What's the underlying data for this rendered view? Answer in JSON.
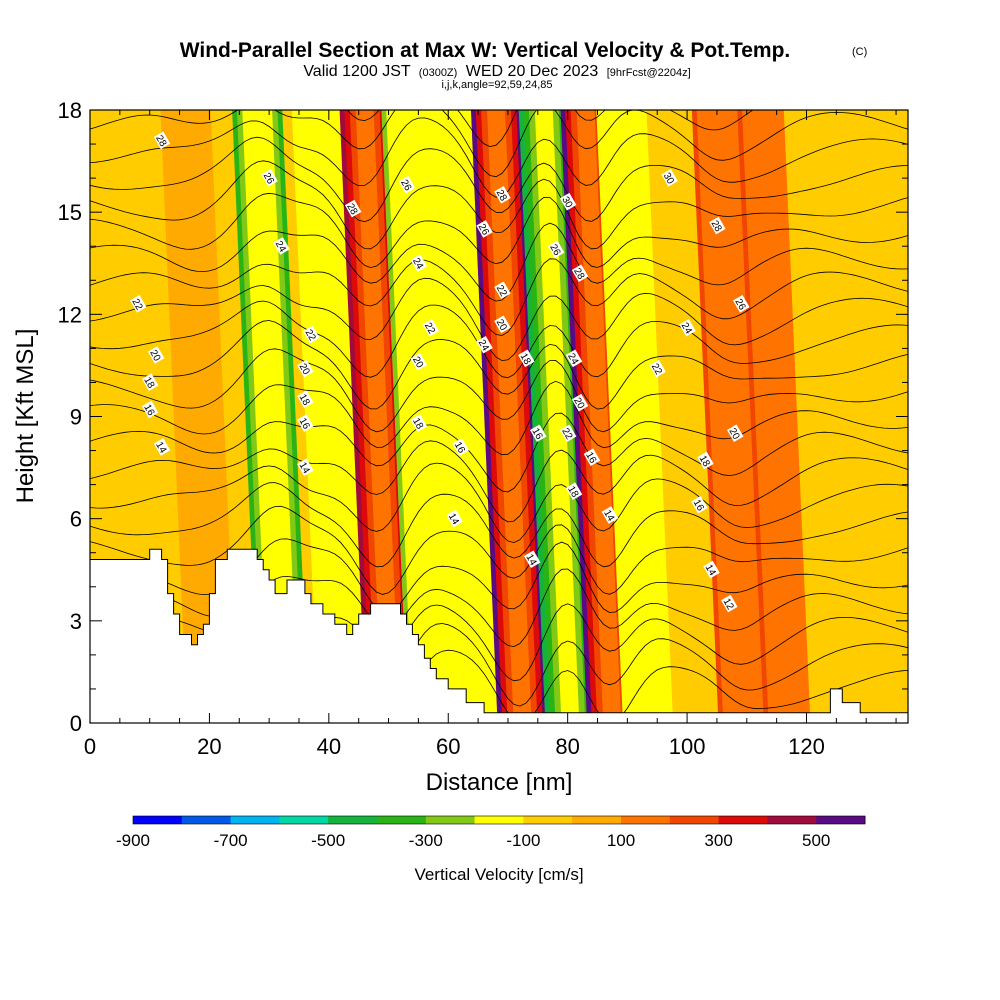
{
  "chart_data": {
    "type": "heatmap",
    "title": "Wind-Parallel Section at Max W: Vertical Velocity & Pot.Temp.",
    "title_mark": "(C)",
    "subtitle_parts": [
      "Valid 1200 JST",
      "(0300Z)",
      "WED 20 Dec 2023",
      "[9hrFcst@2204z]"
    ],
    "subtitle2": "i,j,k,angle=92,59,24,85",
    "xlabel": "Distance [nm]",
    "ylabel": "Height [Kft MSL]",
    "xlim": [
      0,
      137
    ],
    "ylim": [
      0,
      18
    ],
    "xticks": [
      "0",
      "20",
      "40",
      "60",
      "80",
      "100",
      "120"
    ],
    "yticks": [
      "0",
      "3",
      "6",
      "9",
      "12",
      "15",
      "18"
    ],
    "colorbar": {
      "label": "Vertical Velocity [cm/s]",
      "tick_labels": [
        "-900",
        "-700",
        "-500",
        "-300",
        "-100",
        "100",
        "300",
        "500"
      ],
      "colors": [
        "#0000ff",
        "#005ae6",
        "#00b4f0",
        "#00d7a5",
        "#14b43c",
        "#28b414",
        "#82c814",
        "#ffff00",
        "#ffcc00",
        "#ffaa00",
        "#ff7300",
        "#f04600",
        "#dc0a0a",
        "#a00a3c",
        "#5a0a82"
      ],
      "vmin": -900,
      "vmax": 600,
      "step": 100
    },
    "velocity_bands": [
      {
        "x": 16,
        "v": 80
      },
      {
        "x": 28,
        "v": -350
      },
      {
        "x": 38,
        "v": -150
      },
      {
        "x": 46,
        "v": 450
      },
      {
        "x": 53,
        "v": -250
      },
      {
        "x": 60,
        "v": -120
      },
      {
        "x": 68,
        "v": 520
      },
      {
        "x": 76,
        "v": -420
      },
      {
        "x": 83,
        "v": 500
      },
      {
        "x": 89,
        "v": -130
      },
      {
        "x": 112,
        "v": 100
      },
      {
        "x": 105,
        "v": 250
      }
    ],
    "theta_contour_labels": [
      {
        "x": 12,
        "y": 17.1,
        "text": "28"
      },
      {
        "x": 30,
        "y": 16.0,
        "text": "26"
      },
      {
        "x": 32,
        "y": 14.0,
        "text": "24"
      },
      {
        "x": 8,
        "y": 12.3,
        "text": "22"
      },
      {
        "x": 11,
        "y": 10.8,
        "text": "20"
      },
      {
        "x": 10,
        "y": 10.0,
        "text": "18"
      },
      {
        "x": 10,
        "y": 9.2,
        "text": "16"
      },
      {
        "x": 12,
        "y": 8.1,
        "text": "14"
      },
      {
        "x": 44,
        "y": 15.1,
        "text": "28"
      },
      {
        "x": 53,
        "y": 15.8,
        "text": "26"
      },
      {
        "x": 55,
        "y": 13.5,
        "text": "24"
      },
      {
        "x": 57,
        "y": 11.6,
        "text": "22"
      },
      {
        "x": 55,
        "y": 10.6,
        "text": "20"
      },
      {
        "x": 55,
        "y": 8.8,
        "text": "18"
      },
      {
        "x": 62,
        "y": 8.1,
        "text": "16"
      },
      {
        "x": 61,
        "y": 6.0,
        "text": "14"
      },
      {
        "x": 37,
        "y": 11.4,
        "text": "22"
      },
      {
        "x": 36,
        "y": 10.4,
        "text": "20"
      },
      {
        "x": 36,
        "y": 9.5,
        "text": "18"
      },
      {
        "x": 36,
        "y": 8.8,
        "text": "16"
      },
      {
        "x": 36,
        "y": 7.5,
        "text": "14"
      },
      {
        "x": 69,
        "y": 15.5,
        "text": "28"
      },
      {
        "x": 66,
        "y": 14.5,
        "text": "26"
      },
      {
        "x": 69,
        "y": 12.7,
        "text": "22"
      },
      {
        "x": 69,
        "y": 11.7,
        "text": "20"
      },
      {
        "x": 66,
        "y": 11.1,
        "text": "24"
      },
      {
        "x": 73,
        "y": 10.7,
        "text": "18"
      },
      {
        "x": 75,
        "y": 8.5,
        "text": "16"
      },
      {
        "x": 74,
        "y": 4.8,
        "text": "14"
      },
      {
        "x": 80,
        "y": 15.3,
        "text": "30"
      },
      {
        "x": 78,
        "y": 13.9,
        "text": "26"
      },
      {
        "x": 82,
        "y": 13.2,
        "text": "28"
      },
      {
        "x": 81,
        "y": 10.7,
        "text": "24"
      },
      {
        "x": 82,
        "y": 9.4,
        "text": "20"
      },
      {
        "x": 80,
        "y": 8.5,
        "text": "22"
      },
      {
        "x": 84,
        "y": 7.8,
        "text": "16"
      },
      {
        "x": 81,
        "y": 6.8,
        "text": "18"
      },
      {
        "x": 87,
        "y": 6.1,
        "text": "14"
      },
      {
        "x": 97,
        "y": 16.0,
        "text": "30"
      },
      {
        "x": 105,
        "y": 14.6,
        "text": "28"
      },
      {
        "x": 109,
        "y": 12.3,
        "text": "26"
      },
      {
        "x": 100,
        "y": 11.6,
        "text": "24"
      },
      {
        "x": 95,
        "y": 10.4,
        "text": "22"
      },
      {
        "x": 108,
        "y": 8.5,
        "text": "20"
      },
      {
        "x": 103,
        "y": 7.7,
        "text": "18"
      },
      {
        "x": 102,
        "y": 6.4,
        "text": "16"
      },
      {
        "x": 104,
        "y": 4.5,
        "text": "14"
      },
      {
        "x": 107,
        "y": 3.5,
        "text": "12"
      }
    ],
    "terrain_heights": [
      [
        0,
        4.8
      ],
      [
        10,
        4.8
      ],
      [
        10,
        5.1
      ],
      [
        12,
        5.1
      ],
      [
        12,
        4.8
      ],
      [
        13,
        4.8
      ],
      [
        13,
        3.8
      ],
      [
        14,
        3.8
      ],
      [
        14,
        3.2
      ],
      [
        15,
        3.2
      ],
      [
        15,
        2.6
      ],
      [
        17,
        2.6
      ],
      [
        17,
        2.3
      ],
      [
        18,
        2.3
      ],
      [
        18,
        2.6
      ],
      [
        19,
        2.6
      ],
      [
        19,
        2.9
      ],
      [
        20,
        2.9
      ],
      [
        20,
        3.8
      ],
      [
        21,
        3.8
      ],
      [
        21,
        4.8
      ],
      [
        23,
        4.8
      ],
      [
        23,
        5.1
      ],
      [
        28,
        5.1
      ],
      [
        28,
        4.8
      ],
      [
        29,
        4.8
      ],
      [
        29,
        4.5
      ],
      [
        30,
        4.5
      ],
      [
        30,
        4.2
      ],
      [
        31,
        4.2
      ],
      [
        31,
        3.8
      ],
      [
        33,
        3.8
      ],
      [
        33,
        4.2
      ],
      [
        36,
        4.2
      ],
      [
        36,
        3.8
      ],
      [
        37,
        3.8
      ],
      [
        37,
        3.5
      ],
      [
        39,
        3.5
      ],
      [
        39,
        3.2
      ],
      [
        41,
        3.2
      ],
      [
        41,
        2.9
      ],
      [
        43,
        2.9
      ],
      [
        43,
        2.6
      ],
      [
        44,
        2.6
      ],
      [
        44,
        2.9
      ],
      [
        45,
        2.9
      ],
      [
        45,
        3.2
      ],
      [
        47,
        3.2
      ],
      [
        47,
        3.5
      ],
      [
        52,
        3.5
      ],
      [
        52,
        3.2
      ],
      [
        53,
        3.2
      ],
      [
        53,
        2.9
      ],
      [
        54,
        2.9
      ],
      [
        54,
        2.6
      ],
      [
        55,
        2.6
      ],
      [
        55,
        2.3
      ],
      [
        56,
        2.3
      ],
      [
        56,
        1.9
      ],
      [
        57,
        1.9
      ],
      [
        57,
        1.6
      ],
      [
        58,
        1.6
      ],
      [
        58,
        1.3
      ],
      [
        60,
        1.3
      ],
      [
        60,
        1.0
      ],
      [
        63,
        1.0
      ],
      [
        63,
        0.6
      ],
      [
        66,
        0.6
      ],
      [
        66,
        0.3
      ],
      [
        124,
        0.3
      ],
      [
        124,
        1.0
      ],
      [
        126,
        1.0
      ],
      [
        126,
        0.6
      ],
      [
        129,
        0.6
      ],
      [
        129,
        0.3
      ],
      [
        137,
        0.3
      ]
    ]
  }
}
